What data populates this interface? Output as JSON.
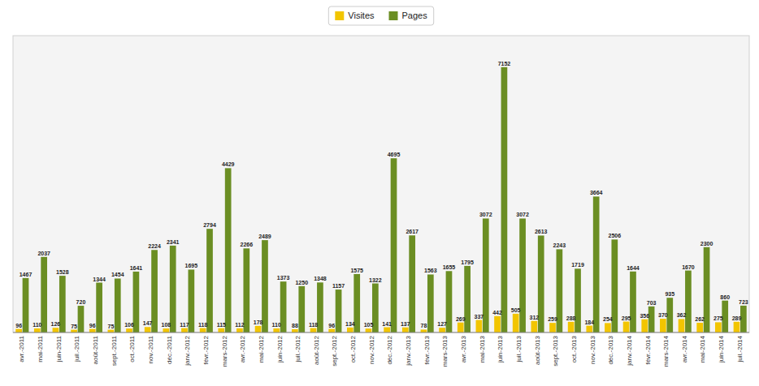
{
  "chart_data": {
    "type": "bar",
    "categories": [
      "avr.-2011",
      "mai-2011",
      "juin-2011",
      "juil.-2011",
      "août-2011",
      "sept.-2011",
      "oct.-2011",
      "nov.-2011",
      "déc.-2011",
      "janv.-2012",
      "févr.-2012",
      "mars-2012",
      "avr.-2012",
      "mai-2012",
      "juin-2012",
      "juil.-2012",
      "août-2012",
      "sept.-2012",
      "oct.-2012",
      "nov.-2012",
      "déc.-2012",
      "janv.-2013",
      "févr.-2013",
      "mars-2013",
      "avr.-2013",
      "mai-2013",
      "juin-2013",
      "juil.-2013",
      "août-2013",
      "sept.-2013",
      "oct.-2013",
      "nov.-2013",
      "déc.-2013",
      "janv.-2014",
      "févr.-2014",
      "mars-2014",
      "avr.-2014",
      "mai-2014",
      "juin-2014",
      "juil.-2014"
    ],
    "series": [
      {
        "name": "Visites",
        "color": "#f2c500",
        "values": [
          96,
          110,
          126,
          75,
          96,
          75,
          106,
          147,
          108,
          117,
          118,
          115,
          112,
          178,
          110,
          88,
          118,
          96,
          134,
          105,
          141,
          137,
          78,
          127,
          269,
          337,
          442,
          505,
          312,
          259,
          288,
          184,
          254,
          295,
          356,
          370,
          362,
          262,
          275,
          289
        ]
      },
      {
        "name": "Pages",
        "color": "#6b8e23",
        "values": [
          1467,
          2037,
          1528,
          720,
          1344,
          1454,
          1641,
          2224,
          2341,
          1695,
          2794,
          4429,
          2266,
          2489,
          1373,
          1250,
          1348,
          1157,
          1575,
          1322,
          4695,
          2617,
          1563,
          1655,
          1795,
          3072,
          7152,
          3072,
          2613,
          2243,
          1719,
          3664,
          2506,
          1644,
          703,
          935,
          1670,
          2300,
          860,
          723
        ]
      }
    ],
    "ylim": [
      0,
      8000
    ],
    "tick_labels": "x",
    "data_labels": true,
    "legend": "top",
    "grid": false
  }
}
